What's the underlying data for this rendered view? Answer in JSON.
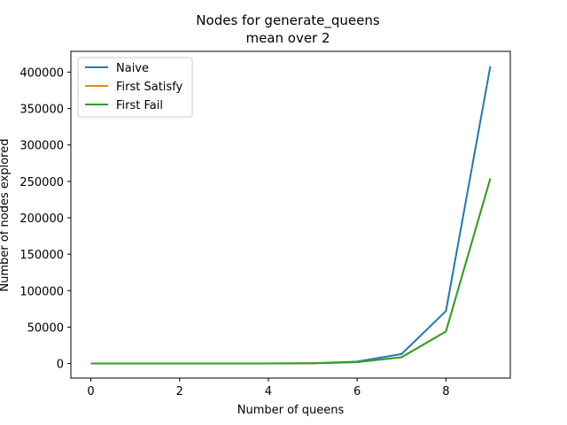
{
  "chart_data": {
    "type": "line",
    "title": "Nodes for generate_queens",
    "subtitle": "mean over 2",
    "xlabel": "Number of queens",
    "ylabel": "Number of nodes explored",
    "xlim": [
      -0.45,
      9.45
    ],
    "ylim": [
      -20000,
      428500
    ],
    "xticks": [
      0,
      2,
      4,
      6,
      8
    ],
    "yticks": [
      0,
      50000,
      100000,
      150000,
      200000,
      250000,
      300000,
      350000,
      400000
    ],
    "grid": false,
    "legend": "top-left",
    "x": [
      0,
      1,
      2,
      3,
      4,
      5,
      6,
      7,
      8,
      9
    ],
    "series": [
      {
        "name": "Naive",
        "color": "#1f77b4",
        "values": [
          1,
          2,
          6,
          20,
          80,
          400,
          2600,
          13000,
          72000,
          408000
        ]
      },
      {
        "name": "First Satisfy",
        "color": "#ff7f0e",
        "values": [
          1,
          2,
          5,
          15,
          60,
          300,
          1800,
          8500,
          44000,
          254000
        ]
      },
      {
        "name": "First Fail",
        "color": "#2ca02c",
        "values": [
          1,
          2,
          5,
          15,
          60,
          300,
          1800,
          8500,
          44000,
          254000
        ]
      }
    ]
  }
}
